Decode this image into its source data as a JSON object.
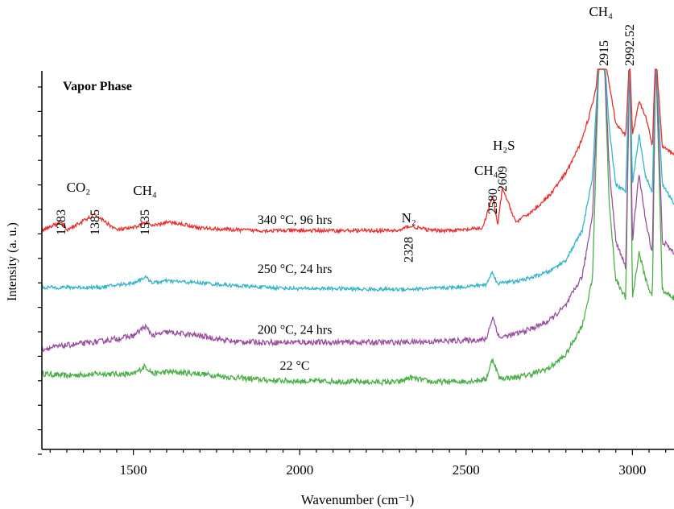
{
  "chart_data": {
    "type": "line",
    "title": "",
    "panel_label": "Vapor Phase",
    "xlabel": "Wavenumber (cm⁻¹)",
    "ylabel": "Intensity (a. u.)",
    "xlim": [
      1225,
      3125
    ],
    "xticks": [
      "1500",
      "2000",
      "2500",
      "3000"
    ],
    "xtick_values": [
      1500,
      2000,
      2500,
      3000
    ],
    "grid": false,
    "legend": "none",
    "series": [
      {
        "name": "340 °C, 96 hrs",
        "color": "#e8302e",
        "baseline": 0.58,
        "noise": 0.004,
        "x": [
          1225,
          1283,
          1300,
          1385,
          1450,
          1500,
          1535,
          1560,
          1600,
          1650,
          1700,
          1800,
          1900,
          2000,
          2100,
          2200,
          2300,
          2328,
          2400,
          2500,
          2550,
          2580,
          2595,
          2609,
          2650,
          2700,
          2750,
          2800,
          2840,
          2870,
          2890,
          2900,
          2915,
          2930,
          2950,
          2980,
          2992,
          3000,
          3020,
          3040,
          3060,
          3070,
          3090,
          3125
        ],
        "y": [
          0.58,
          0.6,
          0.58,
          0.62,
          0.58,
          0.585,
          0.6,
          0.59,
          0.6,
          0.595,
          0.585,
          0.58,
          0.578,
          0.578,
          0.578,
          0.578,
          0.578,
          0.59,
          0.578,
          0.58,
          0.585,
          0.67,
          0.59,
          0.69,
          0.6,
          0.63,
          0.67,
          0.73,
          0.8,
          0.88,
          0.95,
          1.05,
          1.05,
          0.97,
          0.86,
          0.83,
          1.05,
          0.83,
          0.92,
          0.88,
          0.8,
          1.05,
          0.8,
          0.78
        ]
      },
      {
        "name": "250 °C, 24 hrs",
        "color": "#35b5c8",
        "baseline": 0.428,
        "noise": 0.004,
        "x": [
          1225,
          1300,
          1400,
          1500,
          1535,
          1560,
          1600,
          1700,
          1800,
          1900,
          2000,
          2100,
          2200,
          2300,
          2400,
          2500,
          2560,
          2580,
          2595,
          2609,
          2650,
          2700,
          2750,
          2800,
          2850,
          2880,
          2900,
          2915,
          2930,
          2950,
          2980,
          2992,
          3000,
          3020,
          3040,
          3060,
          3070,
          3090,
          3125
        ],
        "y": [
          0.428,
          0.428,
          0.428,
          0.44,
          0.455,
          0.44,
          0.445,
          0.44,
          0.433,
          0.428,
          0.425,
          0.425,
          0.423,
          0.423,
          0.425,
          0.43,
          0.435,
          0.47,
          0.435,
          0.443,
          0.443,
          0.455,
          0.47,
          0.5,
          0.58,
          0.72,
          1.05,
          1.05,
          0.85,
          0.7,
          0.68,
          1.05,
          0.7,
          0.83,
          0.72,
          0.68,
          1.05,
          0.7,
          0.65
        ]
      },
      {
        "name": "200 °C, 24 hrs",
        "color": "#9a4fa0",
        "baseline": 0.265,
        "noise": 0.006,
        "x": [
          1225,
          1300,
          1400,
          1500,
          1535,
          1560,
          1600,
          1700,
          1800,
          1900,
          2000,
          2100,
          2200,
          2300,
          2400,
          2500,
          2560,
          2580,
          2600,
          2650,
          2700,
          2750,
          2800,
          2850,
          2880,
          2900,
          2915,
          2930,
          2950,
          2980,
          2992,
          3000,
          3020,
          3040,
          3060,
          3070,
          3090,
          3125
        ],
        "y": [
          0.265,
          0.275,
          0.285,
          0.3,
          0.325,
          0.3,
          0.31,
          0.3,
          0.285,
          0.283,
          0.283,
          0.283,
          0.283,
          0.283,
          0.285,
          0.288,
          0.29,
          0.35,
          0.295,
          0.305,
          0.32,
          0.34,
          0.38,
          0.46,
          0.62,
          1.05,
          1.05,
          0.75,
          0.55,
          0.48,
          1.05,
          0.55,
          0.73,
          0.6,
          0.52,
          1.05,
          0.55,
          0.52
        ]
      },
      {
        "name": "22 °C",
        "color": "#4daf4a",
        "baseline": 0.2,
        "noise": 0.006,
        "x": [
          1225,
          1300,
          1400,
          1500,
          1535,
          1560,
          1600,
          1700,
          1800,
          1900,
          2000,
          2100,
          2200,
          2300,
          2330,
          2400,
          2500,
          2560,
          2580,
          2600,
          2650,
          2700,
          2750,
          2800,
          2850,
          2880,
          2900,
          2915,
          2930,
          2950,
          2980,
          2992,
          3000,
          3020,
          3040,
          3060,
          3070,
          3090,
          3125
        ],
        "y": [
          0.2,
          0.195,
          0.2,
          0.198,
          0.22,
          0.2,
          0.205,
          0.2,
          0.19,
          0.183,
          0.18,
          0.18,
          0.178,
          0.178,
          0.19,
          0.178,
          0.18,
          0.185,
          0.24,
          0.188,
          0.19,
          0.2,
          0.215,
          0.25,
          0.33,
          0.45,
          1.05,
          1.05,
          0.65,
          0.45,
          0.4,
          1.05,
          0.4,
          0.52,
          0.45,
          0.4,
          1.05,
          0.42,
          0.4
        ]
      }
    ],
    "series_labels": [
      {
        "text": "340 °C, 96 hrs",
        "x": 1985,
        "y": 0.6
      },
      {
        "text": "250 °C, 24 hrs",
        "x": 1985,
        "y": 0.47
      },
      {
        "text": "200 °C, 24 hrs",
        "x": 1985,
        "y": 0.31
      },
      {
        "text": "22 °C",
        "x": 1985,
        "y": 0.215
      }
    ],
    "peak_annotations": [
      {
        "text": "1283",
        "x": 1283
      },
      {
        "text": "1385",
        "x": 1385
      },
      {
        "text": "1535",
        "x": 1535
      },
      {
        "text": "2328",
        "x": 2328
      },
      {
        "text": "2580",
        "x": 2580
      },
      {
        "text": "2609",
        "x": 2609
      },
      {
        "text": "2915",
        "x": 2915
      },
      {
        "text": "2992.52",
        "x": 2992
      }
    ],
    "species_labels": [
      {
        "text": "CO₂",
        "x": 1335
      },
      {
        "text": "CH₄",
        "x": 1535
      },
      {
        "text": "N₂",
        "x": 2328
      },
      {
        "text": "CH₄",
        "x": 2580
      },
      {
        "text": "H₂S",
        "x": 2609
      },
      {
        "text": "CH₄",
        "x": 2915
      }
    ]
  }
}
